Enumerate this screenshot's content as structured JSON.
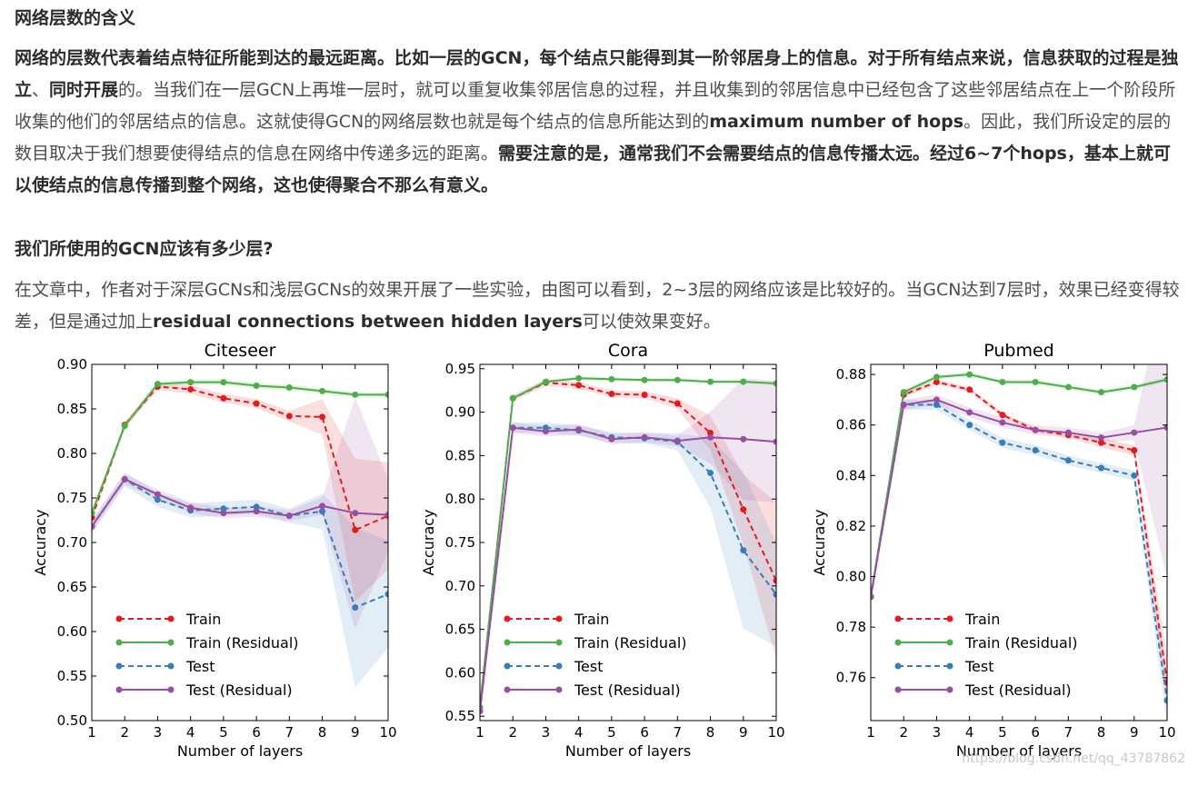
{
  "section1": {
    "heading": "网络层数的含义",
    "p_bold1": "网络的层数代表着结点特征所能到达的最远距离。比如一层的GCN，每个结点只能得到其一阶邻居身上的信息。对于所有结点来说，信息获取的过程是独立",
    "p_sep": "、",
    "p_bold2": "同时开展",
    "p_text1": "的。当我们在一层GCN上再堆一层时，就可以重复收集邻居信息的过程，并且收集到的邻居信息中已经包含了这些邻居结点在上一个阶段所收集的他们的邻居结点的信息。这就使得GCN的网络层数也就是每个结点的信息所能达到的",
    "p_bold3": "maximum number of hops",
    "p_text2": "。因此，我们所设定的层的数目取决于我们想要使得结点的信息在网络中传递多远的距离。",
    "p_bold4": "需要注意的是，通常我们不会需要结点的信息传播太远。经过6~7个hops，基本上就可以使结点的信息传播到整个网络，这也使得聚合不那么有意义。"
  },
  "section2": {
    "heading": "我们所使用的GCN应该有多少层?",
    "p_text1": "在文章中，作者对于深层GCNs和浅层GCNs的效果开展了一些实验，由图可以看到，2~3层的网络应该是比较好的。当GCN达到7层时，效果已经变得较差，但是通过加上",
    "p_bold1": "residual connections between hidden layers",
    "p_text2": "可以使效果变好。"
  },
  "watermark": "https://blog.csdn.net/qq_43787862",
  "colors": {
    "train": "#e41a1c",
    "train_residual": "#4daf4a",
    "test": "#377eb8",
    "test_residual": "#984ea3"
  },
  "chart_data": [
    {
      "type": "line",
      "title": "Citeseer",
      "xlabel": "Number of layers",
      "ylabel": "Accuracy",
      "x": [
        1,
        2,
        3,
        4,
        5,
        6,
        7,
        8,
        9,
        10
      ],
      "xlim": [
        1,
        10
      ],
      "ylim": [
        0.5,
        0.9
      ],
      "yticks": [
        "0.50",
        "0.55",
        "0.60",
        "0.65",
        "0.70",
        "0.75",
        "0.80",
        "0.85",
        "0.90"
      ],
      "legend": "lower-left",
      "series": [
        {
          "name": "Train",
          "style": "dashed",
          "values": [
            0.728,
            0.832,
            0.875,
            0.872,
            0.862,
            0.856,
            0.842,
            0.841,
            0.714,
            0.73
          ],
          "band": [
            0.005,
            0.004,
            0.004,
            0.005,
            0.005,
            0.005,
            0.006,
            0.02,
            0.08,
            0.06
          ]
        },
        {
          "name": "Train (Residual)",
          "style": "solid",
          "values": [
            0.733,
            0.831,
            0.878,
            0.88,
            0.88,
            0.876,
            0.874,
            0.87,
            0.866,
            0.866
          ],
          "band": [
            0.003,
            0.003,
            0.003,
            0.003,
            0.003,
            0.003,
            0.003,
            0.003,
            0.003,
            0.003
          ]
        },
        {
          "name": "Test",
          "style": "dashed",
          "values": [
            0.718,
            0.771,
            0.748,
            0.736,
            0.738,
            0.74,
            0.73,
            0.735,
            0.627,
            0.642
          ],
          "band": [
            0.008,
            0.008,
            0.008,
            0.008,
            0.008,
            0.008,
            0.008,
            0.02,
            0.09,
            0.06
          ]
        },
        {
          "name": "Test (Residual)",
          "style": "solid",
          "values": [
            0.718,
            0.771,
            0.754,
            0.739,
            0.733,
            0.735,
            0.73,
            0.741,
            0.733,
            0.731
          ],
          "band": [
            0.006,
            0.006,
            0.006,
            0.006,
            0.006,
            0.006,
            0.006,
            0.01,
            0.13,
            0.04
          ]
        }
      ]
    },
    {
      "type": "line",
      "title": "Cora",
      "xlabel": "Number of layers",
      "ylabel": "Accuracy",
      "x": [
        1,
        2,
        3,
        4,
        5,
        6,
        7,
        8,
        9,
        10
      ],
      "xlim": [
        1,
        10
      ],
      "ylim": [
        0.545,
        0.955
      ],
      "yticks": [
        "0.55",
        "0.60",
        "0.65",
        "0.70",
        "0.75",
        "0.80",
        "0.85",
        "0.90",
        "0.95"
      ],
      "legend": "lower-left",
      "series": [
        {
          "name": "Train",
          "style": "dashed",
          "values": [
            0.56,
            0.916,
            0.934,
            0.931,
            0.921,
            0.92,
            0.91,
            0.876,
            0.788,
            0.706
          ],
          "band": [
            0.004,
            0.004,
            0.004,
            0.004,
            0.004,
            0.004,
            0.006,
            0.02,
            0.04,
            0.09
          ]
        },
        {
          "name": "Train (Residual)",
          "style": "solid",
          "values": [
            0.56,
            0.916,
            0.935,
            0.939,
            0.938,
            0.937,
            0.937,
            0.935,
            0.935,
            0.933
          ],
          "band": [
            0.002,
            0.002,
            0.002,
            0.002,
            0.002,
            0.002,
            0.002,
            0.002,
            0.002,
            0.002
          ]
        },
        {
          "name": "Test",
          "style": "dashed",
          "values": [
            0.556,
            0.882,
            0.882,
            0.879,
            0.871,
            0.87,
            0.866,
            0.83,
            0.741,
            0.69
          ],
          "band": [
            0.006,
            0.006,
            0.006,
            0.006,
            0.006,
            0.006,
            0.01,
            0.04,
            0.09,
            0.06
          ]
        },
        {
          "name": "Test (Residual)",
          "style": "solid",
          "values": [
            0.556,
            0.882,
            0.878,
            0.88,
            0.869,
            0.871,
            0.867,
            0.871,
            0.869,
            0.866
          ],
          "band": [
            0.006,
            0.006,
            0.006,
            0.006,
            0.006,
            0.006,
            0.006,
            0.03,
            0.07,
            0.07
          ]
        }
      ]
    },
    {
      "type": "line",
      "title": "Pubmed",
      "xlabel": "Number of layers",
      "ylabel": "Accuracy",
      "x": [
        1,
        2,
        3,
        4,
        5,
        6,
        7,
        8,
        9,
        10
      ],
      "xlim": [
        1,
        10
      ],
      "ylim": [
        0.743,
        0.884
      ],
      "yticks": [
        "0.76",
        "0.78",
        "0.80",
        "0.82",
        "0.84",
        "0.86",
        "0.88"
      ],
      "legend": "lower-left",
      "series": [
        {
          "name": "Train",
          "style": "dashed",
          "values": [
            0.792,
            0.872,
            0.877,
            0.874,
            0.864,
            0.858,
            0.856,
            0.853,
            0.85,
            0.758
          ],
          "band": [
            0.001,
            0.001,
            0.001,
            0.001,
            0.001,
            0.001,
            0.001,
            0.002,
            0.002,
            0.01
          ]
        },
        {
          "name": "Train (Residual)",
          "style": "solid",
          "values": [
            0.792,
            0.873,
            0.879,
            0.88,
            0.877,
            0.877,
            0.875,
            0.873,
            0.875,
            0.878
          ],
          "band": [
            0.001,
            0.001,
            0.001,
            0.001,
            0.001,
            0.001,
            0.001,
            0.001,
            0.001,
            0.001
          ]
        },
        {
          "name": "Test",
          "style": "dashed",
          "values": [
            0.792,
            0.868,
            0.868,
            0.86,
            0.853,
            0.85,
            0.846,
            0.843,
            0.84,
            0.751
          ],
          "band": [
            0.002,
            0.002,
            0.002,
            0.002,
            0.002,
            0.002,
            0.002,
            0.002,
            0.002,
            0.01
          ]
        },
        {
          "name": "Test (Residual)",
          "style": "solid",
          "values": [
            0.792,
            0.868,
            0.87,
            0.865,
            0.861,
            0.858,
            0.857,
            0.855,
            0.857,
            0.859
          ],
          "band": [
            0.002,
            0.002,
            0.002,
            0.002,
            0.002,
            0.002,
            0.002,
            0.002,
            0.003,
            0.06
          ]
        }
      ]
    }
  ]
}
